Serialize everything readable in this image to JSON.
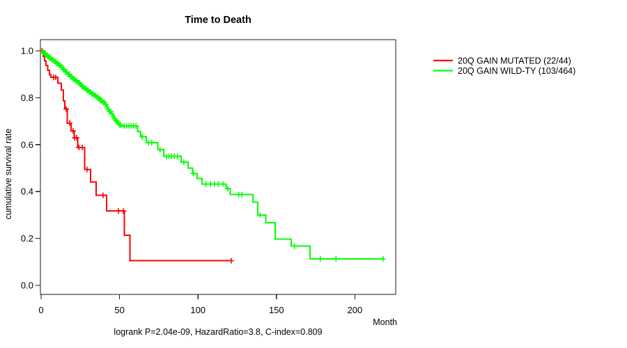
{
  "chart_data": {
    "type": "line",
    "subtype": "kaplan-meier-step-function",
    "title": "Time to Death",
    "xlabel": "Month",
    "ylabel": "cumulative survival rate",
    "stats_line": "logrank P=2.04e-09, HazardRatio=3.8, C-index=0.809",
    "stats": {
      "logrank_p": "2.04e-09",
      "hazard_ratio": "3.8",
      "c_index": "0.809"
    },
    "xlim": [
      0,
      226
    ],
    "ylim": [
      0,
      1.0
    ],
    "grid": false,
    "legend_position": "right",
    "x_tick_values": [
      0,
      50,
      100,
      150,
      200
    ],
    "x_tick_labels": [
      "0",
      "50",
      "100",
      "150",
      "200"
    ],
    "y_tick_values": [
      0.0,
      0.2,
      0.4,
      0.6,
      0.8,
      1.0
    ],
    "y_tick_labels": [
      "0.0",
      "0.2",
      "0.4",
      "0.6",
      "0.8",
      "1.0"
    ],
    "series": [
      {
        "name": "20Q GAIN MUTATED (22/44)",
        "color": "#ff0000",
        "events": 22,
        "n": 44,
        "end_month": 121.2,
        "points": [
          [
            0,
            1.0
          ],
          [
            1.3,
            0.977
          ],
          [
            2.2,
            0.957
          ],
          [
            3.2,
            0.937
          ],
          [
            4.3,
            0.917
          ],
          [
            5.3,
            0.897
          ],
          [
            6.2,
            0.887
          ],
          [
            10.7,
            0.862
          ],
          [
            12.9,
            0.833
          ],
          [
            14.3,
            0.786
          ],
          [
            15.1,
            0.752
          ],
          [
            16.7,
            0.692
          ],
          [
            19.0,
            0.659
          ],
          [
            21.2,
            0.629
          ],
          [
            23.4,
            0.588
          ],
          [
            27.8,
            0.494
          ],
          [
            31.5,
            0.44
          ],
          [
            35.1,
            0.384
          ],
          [
            41.7,
            0.317
          ],
          [
            53.0,
            0.213
          ],
          [
            56.7,
            0.105
          ]
        ],
        "censor_months": [
          0.6,
          8.0,
          9.3,
          16.0,
          18.2,
          20.4,
          21.4,
          22.7,
          24.1,
          26.3,
          29.3,
          39.5,
          49.3,
          52.4,
          121.2
        ]
      },
      {
        "name": "20Q GAIN WILD-TY (103/464)",
        "color": "#00ff00",
        "events": 103,
        "n": 464,
        "end_month": 218,
        "points": [
          [
            0,
            1.0
          ],
          [
            1,
            0.994
          ],
          [
            2,
            0.988
          ],
          [
            3,
            0.982
          ],
          [
            4,
            0.976
          ],
          [
            5,
            0.97
          ],
          [
            6.5,
            0.962
          ],
          [
            8,
            0.954
          ],
          [
            9.5,
            0.946
          ],
          [
            11,
            0.938
          ],
          [
            12.5,
            0.93
          ],
          [
            14,
            0.92
          ],
          [
            15.5,
            0.91
          ],
          [
            17,
            0.9
          ],
          [
            18.5,
            0.89
          ],
          [
            20,
            0.88
          ],
          [
            21.5,
            0.872
          ],
          [
            23,
            0.864
          ],
          [
            24.5,
            0.856
          ],
          [
            26,
            0.848
          ],
          [
            27.5,
            0.84
          ],
          [
            29,
            0.832
          ],
          [
            30.5,
            0.824
          ],
          [
            32,
            0.816
          ],
          [
            33.5,
            0.809
          ],
          [
            35,
            0.802
          ],
          [
            36.5,
            0.795
          ],
          [
            38,
            0.788
          ],
          [
            39.5,
            0.78
          ],
          [
            40.5,
            0.771
          ],
          [
            41.5,
            0.761
          ],
          [
            42.5,
            0.751
          ],
          [
            43.5,
            0.741
          ],
          [
            44.5,
            0.731
          ],
          [
            45.5,
            0.721
          ],
          [
            46.5,
            0.711
          ],
          [
            47.5,
            0.701
          ],
          [
            48.7,
            0.692
          ],
          [
            50,
            0.684
          ],
          [
            51.5,
            0.68
          ],
          [
            61.5,
            0.656
          ],
          [
            63.5,
            0.633
          ],
          [
            67,
            0.608
          ],
          [
            74.5,
            0.578
          ],
          [
            78.2,
            0.55
          ],
          [
            89.3,
            0.525
          ],
          [
            93.7,
            0.5
          ],
          [
            96.5,
            0.477
          ],
          [
            99.5,
            0.455
          ],
          [
            102.6,
            0.432
          ],
          [
            118.0,
            0.412
          ],
          [
            120.5,
            0.387
          ],
          [
            135,
            0.355
          ],
          [
            138.1,
            0.3
          ],
          [
            143.3,
            0.267
          ],
          [
            149.2,
            0.197
          ],
          [
            159.4,
            0.167
          ],
          [
            171.5,
            0.113
          ]
        ],
        "censor_months": [
          1.2,
          2.0,
          2.8,
          3.6,
          4.4,
          5.2,
          6.0,
          6.8,
          7.6,
          8.4,
          9.2,
          10.0,
          10.8,
          11.6,
          12.4,
          13.2,
          14.0,
          14.8,
          15.6,
          16.4,
          17.2,
          18.0,
          18.8,
          19.6,
          20.4,
          21.2,
          22.0,
          22.8,
          23.6,
          24.4,
          25.2,
          26.0,
          26.8,
          27.6,
          28.4,
          29.2,
          30.0,
          30.8,
          31.6,
          32.4,
          33.2,
          34.0,
          34.8,
          35.6,
          36.4,
          37.2,
          38.0,
          38.8,
          39.6,
          40.4,
          41.2,
          42.0,
          42.8,
          43.6,
          44.4,
          45.2,
          46.0,
          46.8,
          47.6,
          48.4,
          49.2,
          50.0,
          50.8,
          53.0,
          54.5,
          56.0,
          57.5,
          59.0,
          60.5,
          64.5,
          68.5,
          70.5,
          75.8,
          80.0,
          81.5,
          83.0,
          85.0,
          87.0,
          91.0,
          97.0,
          105.0,
          108.0,
          110.5,
          113.0,
          116.0,
          119.0,
          126.0,
          128.0,
          139.5,
          161.5,
          178.0,
          188.0,
          218.0
        ]
      }
    ]
  }
}
